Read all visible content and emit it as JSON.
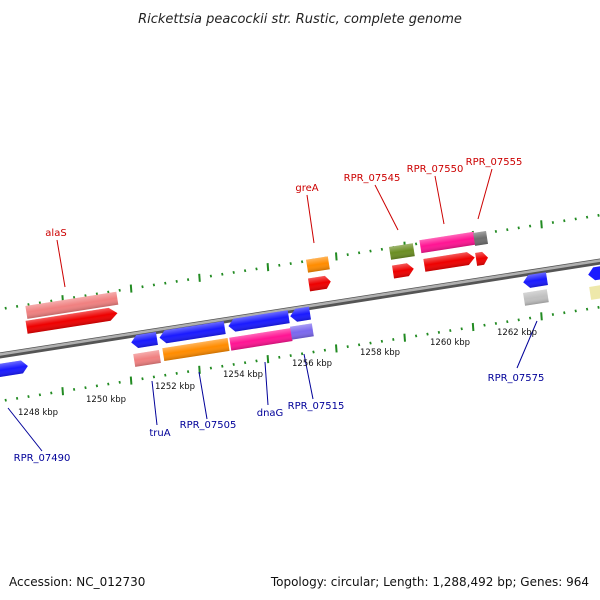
{
  "title": "Rickettsia peacockii str. Rustic, complete genome",
  "footer": {
    "accession": "Accession: NC_012730",
    "summary": "Topology: circular; Length: 1,288,492 bp; Genes: 964"
  },
  "scale_labels": [
    "1248 kbp",
    "1250 kbp",
    "1252 kbp",
    "1254 kbp",
    "1256 kbp",
    "1258 kbp",
    "1260 kbp",
    "1262 kbp"
  ],
  "colors": {
    "top_label": "#cc0000",
    "bottom_label": "#000099",
    "tick": "#228b22",
    "backbone": "#888888"
  },
  "gene_labels": {
    "top": [
      "alaS",
      "greA",
      "RPR_07545",
      "RPR_07550",
      "RPR_07555"
    ],
    "bottom": [
      "RPR_07490",
      "truA",
      "RPR_07505",
      "dnaG",
      "RPR_07515",
      "RPR_07575"
    ]
  }
}
